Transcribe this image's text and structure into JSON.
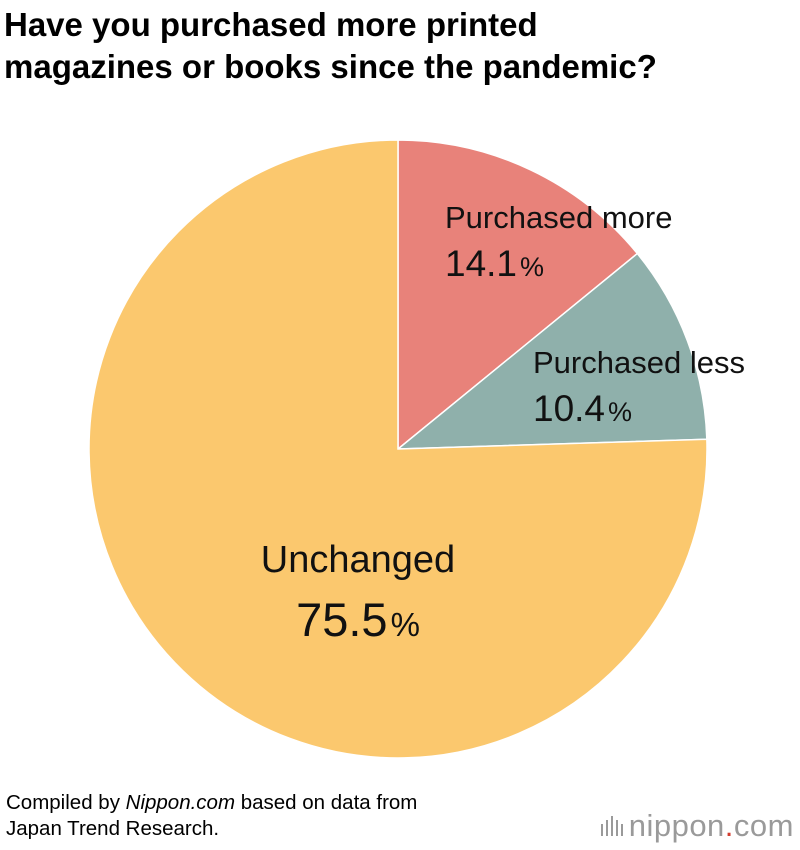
{
  "title_lines": [
    "Have you purchased more printed",
    "magazines or books since the pandemic?"
  ],
  "chart_data": {
    "type": "pie",
    "unit": "%",
    "start_angle_deg": 0,
    "direction": "clockwise",
    "slices": [
      {
        "label": "Purchased more",
        "value": 14.1,
        "value_text": "14.1",
        "color": "#e8827a"
      },
      {
        "label": "Purchased less",
        "value": 10.4,
        "value_text": "10.4",
        "color": "#8fb0ab"
      },
      {
        "label": "Unchanged",
        "value": 75.5,
        "value_text": "75.5",
        "color": "#fbc86e"
      }
    ]
  },
  "footer": {
    "line1_prefix": "Compiled by ",
    "line1_source": "Nippon.com",
    "line1_suffix": " based on data from",
    "line2": "Japan Trend Research."
  },
  "brand": {
    "name": "nippon",
    "dot": ".",
    "tld": "com",
    "dot_color": "#d33c2e"
  }
}
